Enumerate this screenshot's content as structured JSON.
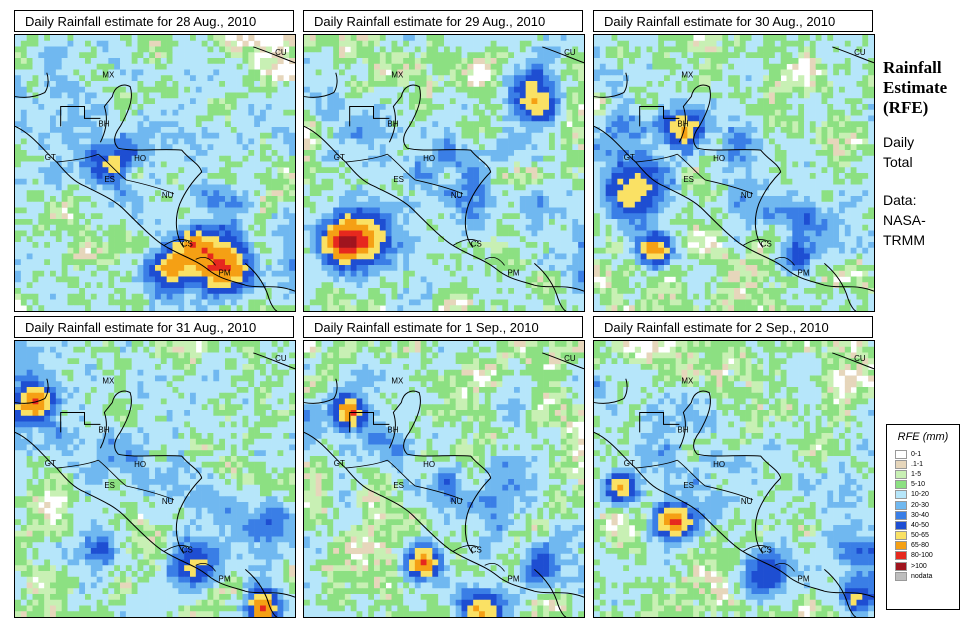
{
  "side_panel": {
    "title_line1": "Rainfall",
    "title_line2": "Estimate",
    "title_line3": "(RFE)",
    "subtitle_line1": "Daily",
    "subtitle_line2": "Total",
    "source_line1": "Data:",
    "source_line2": "NASA-",
    "source_line3": "TRMM"
  },
  "panels": [
    {
      "title": "Daily Rainfall estimate for  28 Aug., 2010"
    },
    {
      "title": "Daily Rainfall estimate for  29 Aug., 2010"
    },
    {
      "title": "Daily Rainfall estimate for  30 Aug., 2010"
    },
    {
      "title": "Daily Rainfall estimate for  31 Aug., 2010"
    },
    {
      "title": "Daily Rainfall estimate for  1 Sep., 2010"
    },
    {
      "title": "Daily Rainfall estimate for  2 Sep., 2010"
    }
  ],
  "country_labels": [
    "MX",
    "CU",
    "BH",
    "GT",
    "HO",
    "ES",
    "NU",
    "CS",
    "PM"
  ],
  "legend": {
    "title": "RFE (mm)",
    "items": [
      {
        "label": "0-1",
        "color": "#ffffff"
      },
      {
        "label": ".1-1",
        "color": "#e6d6bb"
      },
      {
        "label": "1-5",
        "color": "#c8f0b4"
      },
      {
        "label": "5-10",
        "color": "#8ce082"
      },
      {
        "label": "10-20",
        "color": "#b6e6fa"
      },
      {
        "label": "20-30",
        "color": "#70b8f0"
      },
      {
        "label": "30-40",
        "color": "#3a7ee6"
      },
      {
        "label": "40-50",
        "color": "#1e4ed2"
      },
      {
        "label": "50-65",
        "color": "#fae164"
      },
      {
        "label": "65-80",
        "color": "#f5a014"
      },
      {
        "label": "80-100",
        "color": "#e6281e"
      },
      {
        "label": ">100",
        "color": "#a0141e"
      },
      {
        "label": "nodata",
        "color": "#bdbdbd"
      }
    ]
  }
}
